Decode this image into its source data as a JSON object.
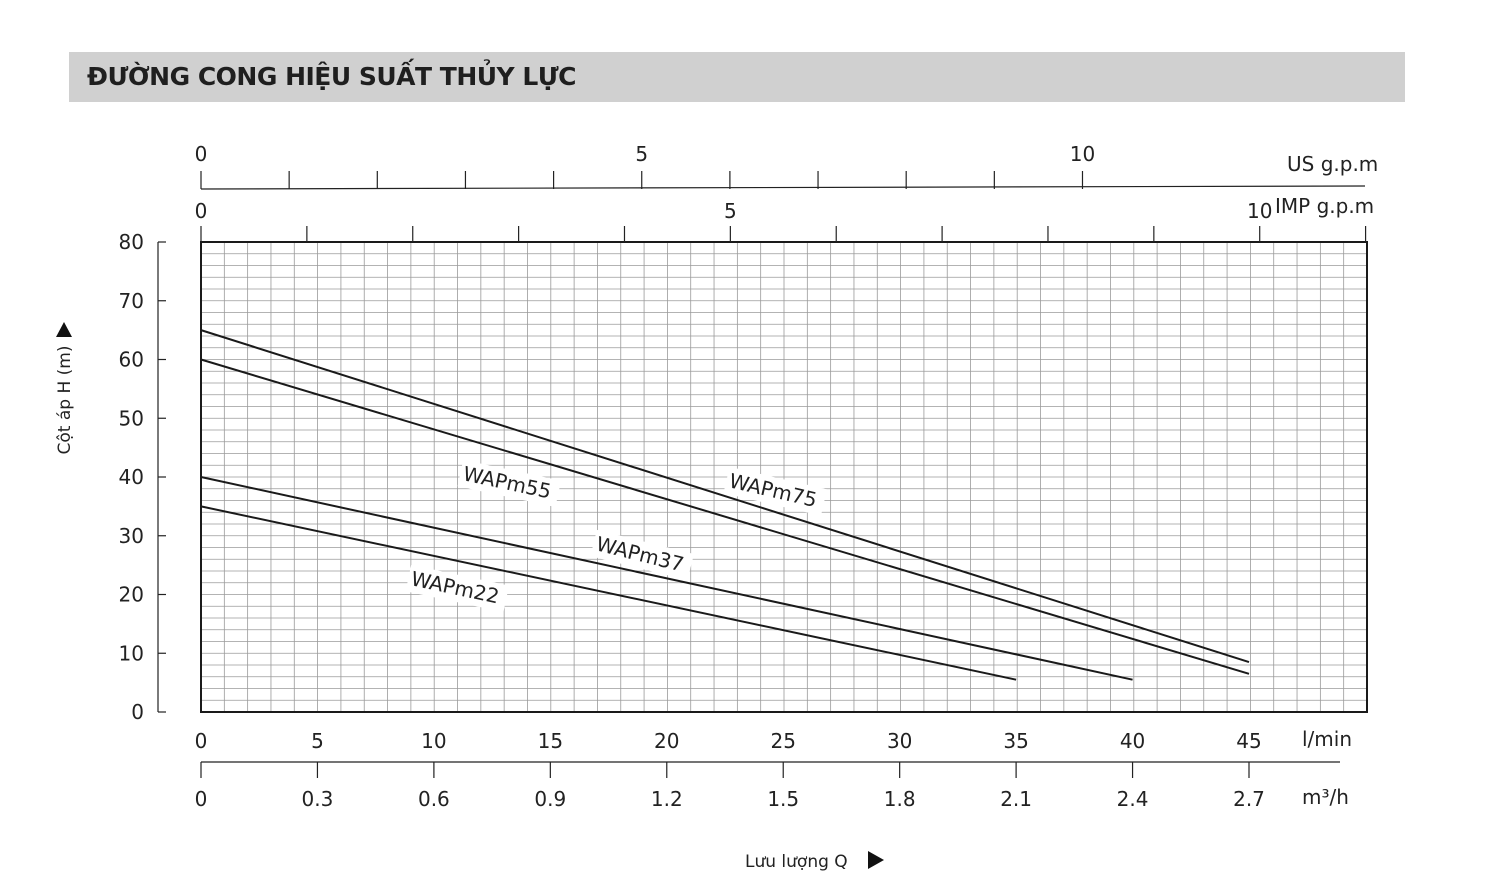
{
  "title": "ĐƯỜNG CONG HIỆU SUẤT THỦY LỰC",
  "chart_data": {
    "type": "line",
    "ylabel": "Cột áp H (m)",
    "xlabel": "Lưu lượng Q",
    "ylim": [
      0,
      80
    ],
    "yticks": [
      "0",
      "10",
      "20",
      "30",
      "40",
      "50",
      "60",
      "70",
      "80"
    ],
    "xlim": [
      0,
      50
    ],
    "x_unit": "l/min",
    "xticks_lmin": [
      "0",
      "5",
      "10",
      "15",
      "20",
      "25",
      "30",
      "35",
      "40",
      "45"
    ],
    "m3h_unit": "m³/h",
    "xticks_m3h": [
      "0",
      "0.3",
      "0.6",
      "0.9",
      "1.2",
      "1.5",
      "1.8",
      "2.1",
      "2.4",
      "2.7"
    ],
    "us_gpm_unit": "US g.p.m",
    "us_gpm_ticks": [
      "0",
      "5",
      "10"
    ],
    "imp_gpm_unit": "IMP g.p.m",
    "imp_gpm_ticks": [
      "0",
      "5",
      "10"
    ],
    "grid": true,
    "series": [
      {
        "name": "WAPm22",
        "x": [
          0,
          35
        ],
        "y": [
          35,
          5.5
        ]
      },
      {
        "name": "WAPm37",
        "x": [
          0,
          40
        ],
        "y": [
          40,
          5.5
        ]
      },
      {
        "name": "WAPm55",
        "x": [
          0,
          45
        ],
        "y": [
          60,
          6.5
        ]
      },
      {
        "name": "WAPm75",
        "x": [
          0,
          45
        ],
        "y": [
          65,
          8.5
        ]
      }
    ]
  }
}
